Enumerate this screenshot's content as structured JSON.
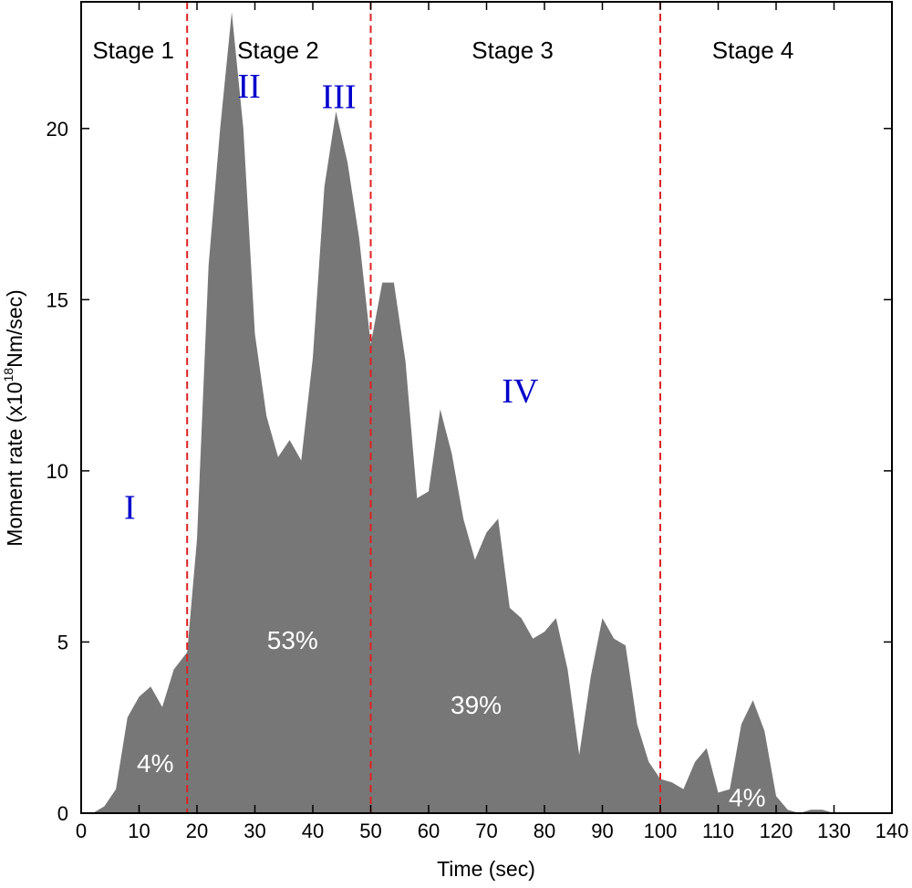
{
  "chart_data": {
    "type": "area",
    "xlabel": "Time (sec)",
    "ylabel_prefix": "Moment rate (x10",
    "ylabel_exp": "18",
    "ylabel_suffix": "Nm/sec)",
    "xlim": [
      0,
      140
    ],
    "ylim": [
      0,
      23.7
    ],
    "xticks": [
      0,
      10,
      20,
      30,
      40,
      50,
      60,
      70,
      80,
      90,
      100,
      110,
      120,
      130,
      140
    ],
    "yticks": [
      0,
      5,
      10,
      15,
      20
    ],
    "grid": false,
    "fill_color": "#777777",
    "divider_color": "#dd2222",
    "dividers": [
      18.3,
      50,
      100
    ],
    "stages": [
      {
        "label": "Stage 1",
        "x": 9
      },
      {
        "label": "Stage 2",
        "x": 34
      },
      {
        "label": "Stage 3",
        "x": 74.5
      },
      {
        "label": "Stage 4",
        "x": 116
      }
    ],
    "roman_labels": [
      {
        "label": "I",
        "x": 8.4,
        "y": 8.6
      },
      {
        "label": "II",
        "x": 29,
        "y": 20.9
      },
      {
        "label": "III",
        "x": 44.5,
        "y": 20.6
      },
      {
        "label": "IV",
        "x": 75.8,
        "y": 12
      }
    ],
    "percent_labels": [
      {
        "label": "4%",
        "x": 12.8,
        "y": 1.2
      },
      {
        "label": "53%",
        "x": 36.5,
        "y": 4.8
      },
      {
        "label": "39%",
        "x": 68.2,
        "y": 2.9
      },
      {
        "label": "4%",
        "x": 115,
        "y": 0.2
      }
    ],
    "x": [
      0,
      2,
      4,
      6,
      8,
      10,
      12,
      14,
      16,
      18.3,
      20,
      22,
      24,
      26,
      28,
      30,
      32,
      34,
      36,
      38,
      40,
      42,
      44,
      46,
      48,
      50,
      52,
      54,
      56,
      58,
      60,
      62,
      64,
      66,
      68,
      70,
      72,
      74,
      76,
      78,
      80,
      82,
      84,
      86,
      88,
      90,
      92,
      94,
      96,
      98,
      100,
      102,
      104,
      106,
      108,
      110,
      112,
      114,
      116,
      118,
      120,
      122,
      124,
      126,
      128,
      130,
      132,
      134,
      136,
      138,
      140
    ],
    "y": [
      0,
      0,
      0.2,
      0.7,
      2.8,
      3.4,
      3.7,
      3.1,
      4.2,
      4.7,
      8,
      16,
      20,
      23.4,
      20,
      14,
      11.6,
      10.4,
      10.9,
      10.3,
      13.3,
      18.3,
      20.5,
      19,
      16.8,
      13.7,
      15.5,
      15.5,
      13.2,
      9.2,
      9.4,
      11.8,
      10.5,
      8.6,
      7.4,
      8.2,
      8.6,
      6,
      5.7,
      5.1,
      5.3,
      5.7,
      4.2,
      1.7,
      4,
      5.7,
      5.1,
      4.9,
      2.6,
      1.5,
      1,
      0.9,
      0.7,
      1.5,
      1.9,
      0.6,
      0.7,
      2.6,
      3.3,
      2.4,
      0.5,
      0.1,
      0,
      0.1,
      0.1,
      0,
      0,
      0,
      0,
      0,
      0
    ]
  }
}
